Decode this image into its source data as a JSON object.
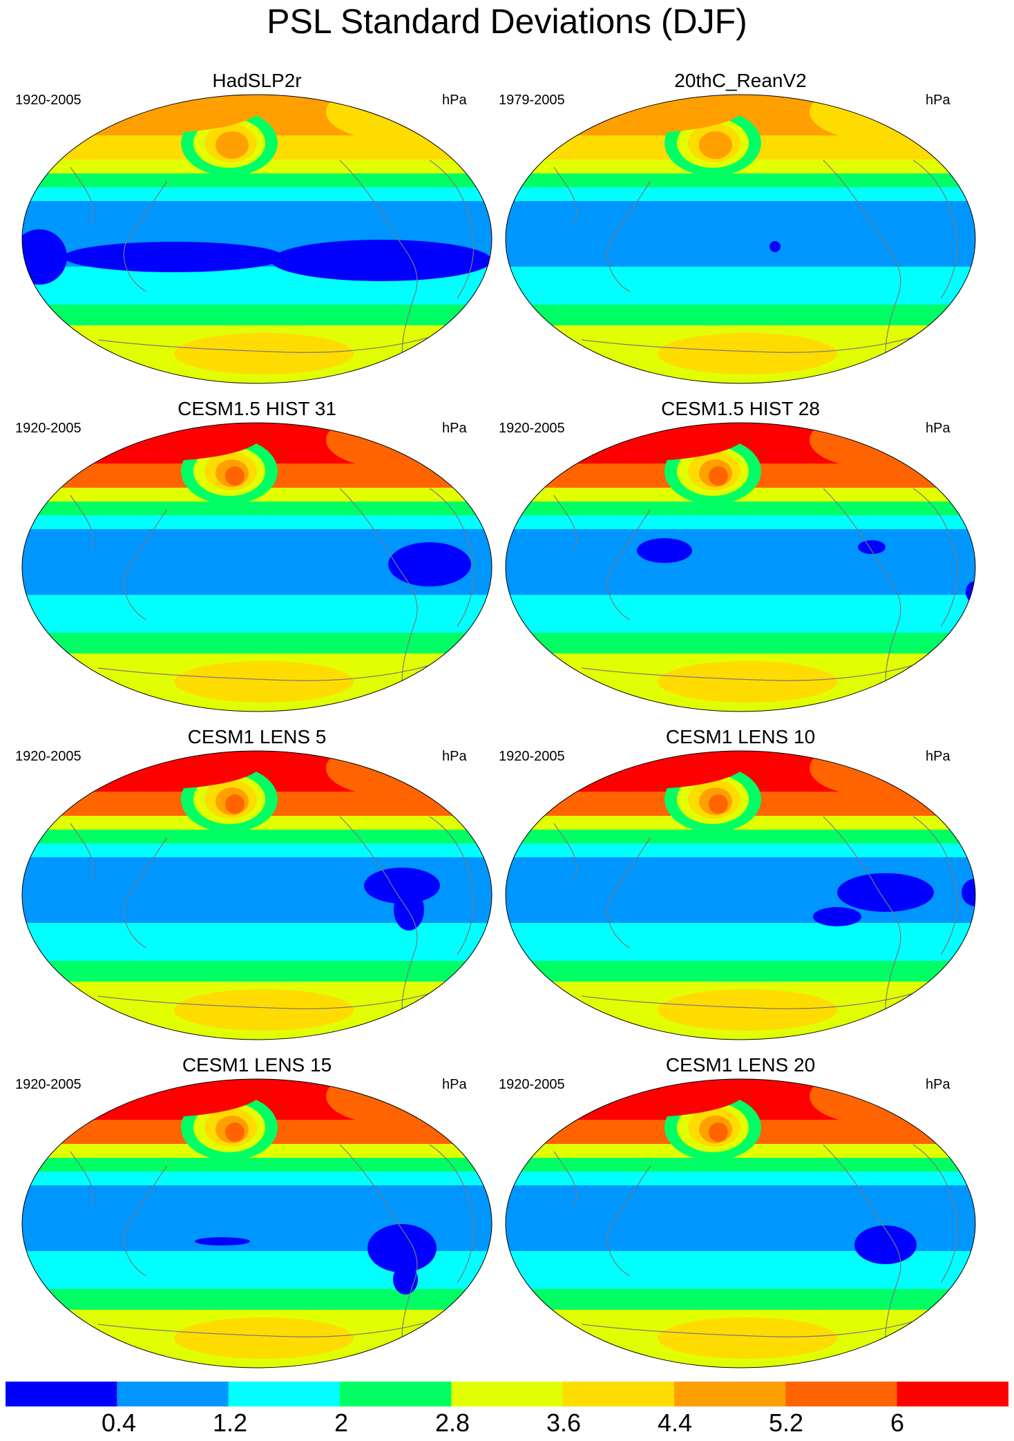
{
  "figure": {
    "title": "PSL Standard Deviations (DJF)",
    "units": "hPa"
  },
  "panels": [
    {
      "title": "HadSLP2r",
      "period": "1920-2005"
    },
    {
      "title": "20thC_ReanV2",
      "period": "1979-2005"
    },
    {
      "title": "CESM1.5 HIST 31",
      "period": "1920-2005"
    },
    {
      "title": "CESM1.5 HIST 28",
      "period": "1920-2005"
    },
    {
      "title": "CESM1 LENS 5",
      "period": "1920-2005"
    },
    {
      "title": "CESM1 LENS 10",
      "period": "1920-2005"
    },
    {
      "title": "CESM1 LENS 15",
      "period": "1920-2005"
    },
    {
      "title": "CESM1 LENS 20",
      "period": "1920-2005"
    }
  ],
  "colorbar": {
    "labels": [
      "0.4",
      "1.2",
      "2",
      "2.8",
      "3.6",
      "4.4",
      "5.2",
      "6"
    ],
    "colors": [
      "#0000ff",
      "#0096ff",
      "#00ffff",
      "#00ff64",
      "#e1ff00",
      "#ffdc00",
      "#ffa000",
      "#ff6400",
      "#ff0000"
    ]
  },
  "map_colors": {
    "ocean_base": "#0096ff",
    "coastline": "#7a7a7a",
    "border": "#000000"
  }
}
